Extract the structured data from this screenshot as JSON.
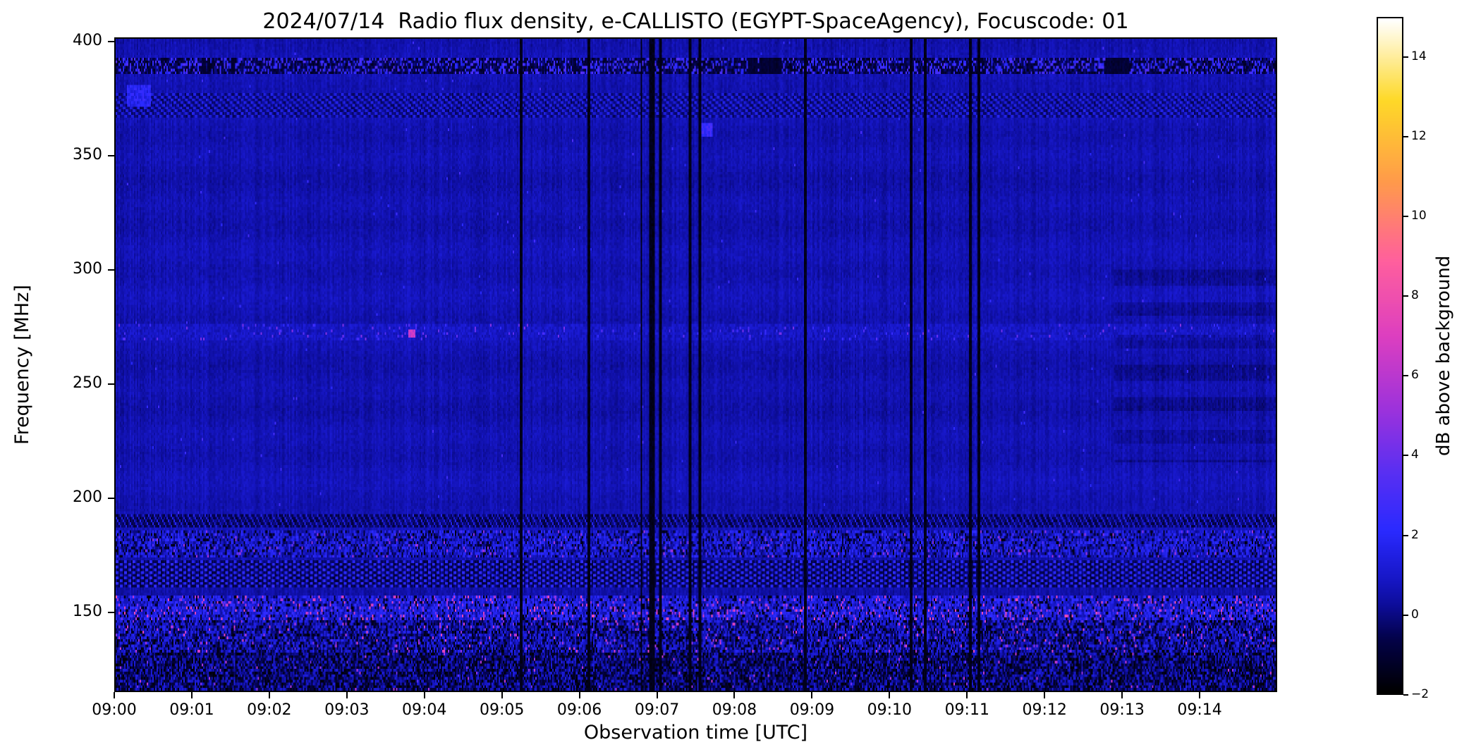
{
  "figure": {
    "title": "2024/07/14  Radio flux density, e-CALLISTO (EGYPT-SpaceAgency), Focuscode: 01",
    "xlabel": "Observation time [UTC]",
    "ylabel": "Frequency [MHz]",
    "colorbar_label": "dB above background"
  },
  "chart_data": {
    "type": "heatmap",
    "title": "2024/07/14  Radio flux density, e-CALLISTO (EGYPT-SpaceAgency), Focuscode: 01",
    "xlabel": "Observation time [UTC]",
    "ylabel": "Frequency [MHz]",
    "grid": false,
    "x_ticks": [
      "09:00",
      "09:01",
      "09:02",
      "09:03",
      "09:04",
      "09:05",
      "09:06",
      "09:07",
      "09:08",
      "09:09",
      "09:10",
      "09:11",
      "09:12",
      "09:13",
      "09:14"
    ],
    "x_range": [
      "09:00:00",
      "09:15:00"
    ],
    "x_span_minutes": 15,
    "y_ticks": [
      150,
      200,
      250,
      300,
      350,
      400
    ],
    "ylim": [
      115,
      402
    ],
    "colorbar": {
      "label": "dB above background",
      "position": "right",
      "range": [
        -2,
        15
      ],
      "ticks": [
        {
          "v": 14,
          "label": "14"
        },
        {
          "v": 12,
          "label": "12"
        },
        {
          "v": 10,
          "label": "10"
        },
        {
          "v": 8,
          "label": "8"
        },
        {
          "v": 6,
          "label": "6"
        },
        {
          "v": 4,
          "label": "4"
        },
        {
          "v": 2,
          "label": "2"
        },
        {
          "v": 0,
          "label": "0"
        },
        {
          "v": -2,
          "label": "−2"
        }
      ]
    },
    "colormap": {
      "name": "gnuplot2-like (black-blue-magenta-yellow-white)",
      "stops": [
        {
          "t": 0.0,
          "c": "#000000"
        },
        {
          "t": 0.08,
          "c": "#03024a"
        },
        {
          "t": 0.13,
          "c": "#0d0d9a"
        },
        {
          "t": 0.17,
          "c": "#1717c8"
        },
        {
          "t": 0.24,
          "c": "#2a2aff"
        },
        {
          "t": 0.33,
          "c": "#5b2ff2"
        },
        {
          "t": 0.42,
          "c": "#9c32dc"
        },
        {
          "t": 0.53,
          "c": "#dd3fc0"
        },
        {
          "t": 0.64,
          "c": "#ff5f9e"
        },
        {
          "t": 0.76,
          "c": "#ff9b4a"
        },
        {
          "t": 0.88,
          "c": "#fed928"
        },
        {
          "t": 1.0,
          "c": "#ffffff"
        }
      ]
    },
    "background_db": 0.55,
    "seed": 20240714,
    "bands": [
      {
        "f0": 386,
        "f1": 394,
        "style": "speckle",
        "p": 0.3,
        "hi": [
          1.4,
          3.4
        ],
        "lo": [
          -1.4,
          0.1
        ],
        "dark_runs": true
      },
      {
        "f0": 367,
        "f1": 378,
        "style": "comb",
        "period": 5,
        "duty": 2,
        "hi": [
          0.9,
          1.7
        ],
        "lo": [
          -0.5,
          0.3
        ]
      },
      {
        "f0": 269,
        "f1": 276,
        "style": "sparse",
        "base": 0.85,
        "spread": 0.8,
        "p": 0.035,
        "hi": [
          2.2,
          4.6
        ]
      },
      {
        "f0": 187,
        "f1": 193,
        "style": "comb",
        "period": 4,
        "duty": 1,
        "hi": [
          0.8,
          1.8
        ],
        "lo": [
          -1.0,
          0.2
        ]
      },
      {
        "f0": 173,
        "f1": 186,
        "style": "active",
        "base": 1.0,
        "spread": 2.4,
        "p": 0.03,
        "hi": [
          3.0,
          5.5
        ],
        "pdark": 0.18,
        "dark": [
          -1.8,
          -0.4
        ]
      },
      {
        "f0": 161,
        "f1": 172,
        "style": "comb",
        "period": 6,
        "duty": 2,
        "hi": [
          1.3,
          2.4
        ],
        "lo": [
          -0.9,
          0.1
        ]
      },
      {
        "f0": 146,
        "f1": 157,
        "style": "active",
        "base": 1.3,
        "spread": 2.2,
        "p": 0.08,
        "hi": [
          3.5,
          8.0
        ],
        "pdark": 0.15,
        "dark": [
          -1.9,
          -0.5
        ]
      },
      {
        "f0": 132,
        "f1": 146,
        "style": "active",
        "base": 0.6,
        "spread": 2.6,
        "p": 0.03,
        "hi": [
          4.0,
          7.5
        ],
        "pdark": 0.22,
        "dark": [
          -2.0,
          -0.7
        ]
      },
      {
        "f0": 115,
        "f1": 132,
        "style": "active",
        "base": 0.15,
        "spread": 2.4,
        "p": 0.012,
        "hi": [
          3.5,
          6.5
        ],
        "pdark": 0.28,
        "dark": [
          -2.0,
          -1.0
        ]
      }
    ],
    "blobs": [
      {
        "t_min": 3.83,
        "f": 272,
        "db": 7.0,
        "w_min": 0.1,
        "h_mhz": 3
      },
      {
        "t_min": 7.65,
        "f": 362,
        "db": 3.2,
        "w_min": 0.14,
        "h_mhz": 5
      },
      {
        "t_min": 0.3,
        "f": 377,
        "db": 2.6,
        "w_min": 0.3,
        "h_mhz": 9
      }
    ],
    "vertical_dropouts": [
      {
        "t_min": 5.25,
        "w_min": 0.035
      },
      {
        "t_min": 6.12,
        "w_min": 0.03
      },
      {
        "t_min": 6.8,
        "w_min": 0.03
      },
      {
        "t_min": 6.93,
        "w_min": 0.07
      },
      {
        "t_min": 7.05,
        "w_min": 0.03
      },
      {
        "t_min": 7.43,
        "w_min": 0.04
      },
      {
        "t_min": 7.56,
        "w_min": 0.03
      },
      {
        "t_min": 8.92,
        "w_min": 0.035
      },
      {
        "t_min": 10.28,
        "w_min": 0.04
      },
      {
        "t_min": 10.47,
        "w_min": 0.035
      },
      {
        "t_min": 11.05,
        "w_min": 0.05
      },
      {
        "t_min": 11.16,
        "w_min": 0.04
      }
    ],
    "right_dark_patch": {
      "t_start_min": 12.9,
      "f0": 215,
      "f1": 300,
      "depth": 0.4
    }
  }
}
